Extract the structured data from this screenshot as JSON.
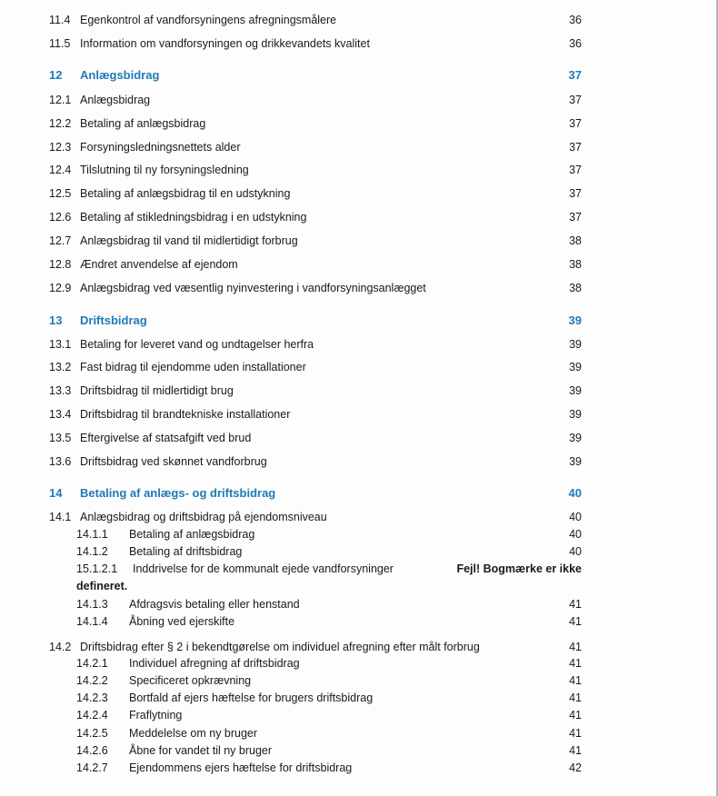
{
  "heading_color": "#1f7ab7",
  "toc": [
    {
      "level": 2,
      "num": "11.4",
      "text": "Egenkontrol af vandforsyningens afregningsmålere",
      "page": "36"
    },
    {
      "level": 2,
      "num": "11.5",
      "text": "Information om vandforsyningen og drikkevandets kvalitet",
      "page": "36"
    },
    {
      "level": 1,
      "num": "12",
      "text": "Anlægsbidrag",
      "page": "37"
    },
    {
      "level": 2,
      "num": "12.1",
      "text": "Anlægsbidrag",
      "page": "37"
    },
    {
      "level": 2,
      "num": "12.2",
      "text": "Betaling af anlægsbidrag",
      "page": "37"
    },
    {
      "level": 2,
      "num": "12.3",
      "text": "Forsyningsledningsnettets alder",
      "page": "37"
    },
    {
      "level": 2,
      "num": "12.4",
      "text": "Tilslutning til ny forsyningsledning",
      "page": "37"
    },
    {
      "level": 2,
      "num": "12.5",
      "text": "Betaling af anlægsbidrag til en udstykning",
      "page": "37"
    },
    {
      "level": 2,
      "num": "12.6",
      "text": "Betaling af stikledningsbidrag i en udstykning",
      "page": "37"
    },
    {
      "level": 2,
      "num": "12.7",
      "text": "Anlægsbidrag til vand til midlertidigt forbrug",
      "page": "38"
    },
    {
      "level": 2,
      "num": "12.8",
      "text": "Ændret anvendelse af ejendom",
      "page": "38"
    },
    {
      "level": 2,
      "num": "12.9",
      "text": "Anlægsbidrag ved væsentlig nyinvestering i vandforsyningsanlægget",
      "page": "38"
    },
    {
      "level": 1,
      "num": "13",
      "text": "Driftsbidrag",
      "page": "39"
    },
    {
      "level": 2,
      "num": "13.1",
      "text": "Betaling for leveret vand og undtagelser herfra",
      "page": "39"
    },
    {
      "level": 2,
      "num": "13.2",
      "text": "Fast bidrag til ejendomme uden installationer",
      "page": "39"
    },
    {
      "level": 2,
      "num": "13.3",
      "text": "Driftsbidrag til midlertidigt brug",
      "page": "39"
    },
    {
      "level": 2,
      "num": "13.4",
      "text": "Driftsbidrag til brandtekniske installationer",
      "page": "39"
    },
    {
      "level": 2,
      "num": "13.5",
      "text": "Eftergivelse af statsafgift ved brud",
      "page": "39"
    },
    {
      "level": 2,
      "num": "13.6",
      "text": "Driftsbidrag ved skønnet vandforbrug",
      "page": "39"
    },
    {
      "level": 1,
      "num": "14",
      "text": "Betaling af anlægs- og driftsbidrag",
      "page": "40"
    },
    {
      "level": 2,
      "num": "14.1",
      "text": "Anlægsbidrag og driftsbidrag på ejendomsniveau",
      "page": "40"
    },
    {
      "level": 3,
      "num": "14.1.1",
      "text": "Betaling af anlægsbidrag",
      "page": "40"
    },
    {
      "level": 3,
      "num": "14.1.2",
      "text": "Betaling af driftsbidrag",
      "page": "40"
    },
    {
      "level": 4,
      "num": "15.1.2.1",
      "text": "Inddrivelse for de kommunalt ejede vandforsyninger",
      "page": "Fejl! Bogmærke er ikke",
      "page_cont": "defineret."
    },
    {
      "level": 3,
      "num": "14.1.3",
      "text": "Afdragsvis betaling eller henstand",
      "page": "41"
    },
    {
      "level": 3,
      "num": "14.1.4",
      "text": "Åbning ved ejerskifte",
      "page": "41"
    },
    {
      "level": 2,
      "num": "14.2",
      "text": "Driftsbidrag efter § 2 i bekendtgørelse om individuel afregning efter målt forbrug",
      "page": "41"
    },
    {
      "level": 3,
      "num": "14.2.1",
      "text": "Individuel afregning af driftsbidrag",
      "page": "41"
    },
    {
      "level": 3,
      "num": "14.2.2",
      "text": "Specificeret opkrævning",
      "page": "41"
    },
    {
      "level": 3,
      "num": "14.2.3",
      "text": "Bortfald af ejers hæftelse for brugers driftsbidrag",
      "page": "41"
    },
    {
      "level": 3,
      "num": "14.2.4",
      "text": "Fraflytning",
      "page": "41"
    },
    {
      "level": 3,
      "num": "14.2.5",
      "text": "Meddelelse om ny bruger",
      "page": "41"
    },
    {
      "level": 3,
      "num": "14.2.6",
      "text": "Åbne for vandet til ny bruger",
      "page": "41"
    },
    {
      "level": 3,
      "num": "14.2.7",
      "text": "Ejendommens ejers hæftelse for driftsbidrag",
      "page": "42"
    }
  ]
}
